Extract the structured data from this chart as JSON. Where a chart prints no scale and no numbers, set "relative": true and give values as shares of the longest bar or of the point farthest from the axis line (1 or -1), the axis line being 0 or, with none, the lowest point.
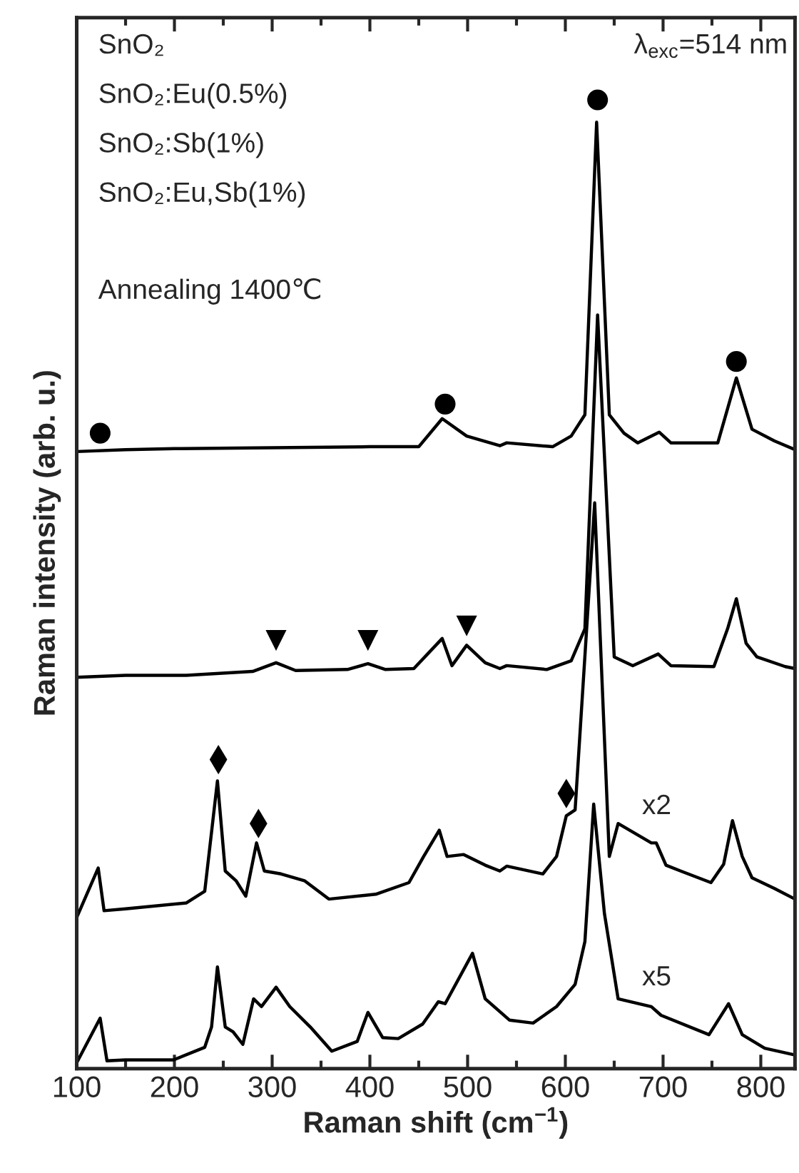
{
  "chart_data": {
    "type": "line",
    "relative": true,
    "xlabel": "Raman shift (cm$^{−1}$)",
    "ylabel": "Raman intensity (arb. u.)",
    "xlim": [
      100,
      835
    ],
    "xticks": [
      100,
      200,
      300,
      400,
      500,
      600,
      700,
      800
    ],
    "tick_labels": "x",
    "grid": false,
    "series": [
      {
        "color": "#000000",
        "x": [
          100,
          150,
          200,
          300,
          400,
          450,
          474,
          499,
          533,
          540,
          587,
          606,
          620,
          632,
          645,
          660,
          674,
          696,
          708,
          756,
          775,
          791,
          814,
          835
        ],
        "values": [
          0.637,
          0.639,
          0.64,
          0.641,
          0.642,
          0.642,
          0.671,
          0.653,
          0.643,
          0.646,
          0.642,
          0.653,
          0.675,
          0.977,
          0.675,
          0.656,
          0.646,
          0.657,
          0.646,
          0.646,
          0.713,
          0.66,
          0.648,
          0.639
        ]
      },
      {
        "color": "#000000",
        "x": [
          100,
          150,
          212,
          280,
          304,
          324,
          377,
          398,
          416,
          445,
          474,
          484,
          499,
          518,
          533,
          540,
          581,
          606,
          620,
          633,
          650,
          669,
          695,
          708,
          752,
          766,
          775,
          785,
          796,
          825,
          835
        ],
        "values": [
          0.404,
          0.406,
          0.406,
          0.41,
          0.419,
          0.411,
          0.412,
          0.418,
          0.412,
          0.413,
          0.444,
          0.416,
          0.437,
          0.419,
          0.413,
          0.416,
          0.412,
          0.421,
          0.454,
          0.778,
          0.425,
          0.416,
          0.428,
          0.416,
          0.415,
          0.454,
          0.485,
          0.439,
          0.425,
          0.415,
          0.413
        ]
      },
      {
        "color": "#000000",
        "x": [
          100,
          122,
          128,
          150,
          212,
          231,
          244,
          252,
          263,
          273,
          284,
          292,
          309,
          333,
          358,
          406,
          440,
          455,
          471,
          479,
          496,
          518,
          533,
          540,
          577,
          591,
          601,
          610,
          630,
          645,
          654,
          688,
          693,
          703,
          718,
          749,
          762,
          771,
          781,
          791,
          814,
          835
        ],
        "values": [
          0.156,
          0.207,
          0.163,
          0.165,
          0.171,
          0.183,
          0.297,
          0.204,
          0.194,
          0.178,
          0.233,
          0.204,
          0.201,
          0.194,
          0.175,
          0.18,
          0.192,
          0.219,
          0.246,
          0.219,
          0.221,
          0.21,
          0.204,
          0.209,
          0.201,
          0.219,
          0.261,
          0.267,
          0.584,
          0.219,
          0.253,
          0.233,
          0.233,
          0.21,
          0.204,
          0.192,
          0.211,
          0.256,
          0.219,
          0.197,
          0.186,
          0.175
        ]
      },
      {
        "color": "#000000",
        "x": [
          100,
          124,
          131,
          150,
          199,
          231,
          238,
          244,
          252,
          260,
          270,
          281,
          289,
          304,
          318,
          339,
          361,
          387,
          398,
          413,
          429,
          454,
          470,
          477,
          505,
          518,
          543,
          567,
          591,
          610,
          620,
          629,
          640,
          654,
          688,
          698,
          747,
          767,
          781,
          804,
          835
        ],
        "values": [
          0.006,
          0.052,
          0.008,
          0.009,
          0.009,
          0.022,
          0.043,
          0.105,
          0.043,
          0.038,
          0.025,
          0.072,
          0.064,
          0.084,
          0.064,
          0.043,
          0.018,
          0.028,
          0.058,
          0.032,
          0.031,
          0.046,
          0.069,
          0.067,
          0.119,
          0.072,
          0.05,
          0.047,
          0.064,
          0.087,
          0.131,
          0.273,
          0.16,
          0.072,
          0.064,
          0.055,
          0.035,
          0.067,
          0.035,
          0.021,
          0.014
        ]
      },
      {
        "type": "scatter",
        "marker": "circle",
        "color": "#000000",
        "x": [
          124,
          477,
          633,
          775
        ],
        "values": [
          0.656,
          0.686,
          1.0,
          0.73
        ]
      },
      {
        "type": "scatter",
        "marker": "triangle",
        "color": "#000000",
        "x": [
          304,
          398,
          499
        ],
        "values": [
          0.442,
          0.442,
          0.457
        ]
      },
      {
        "type": "scatter",
        "marker": "diamond",
        "color": "#000000",
        "x": [
          245,
          286,
          601
        ],
        "values": [
          0.319,
          0.253,
          0.284
        ]
      }
    ],
    "annotations": [
      "λ$_{exc}$=514 nm",
      "SnO₂",
      "SnO₂:Eu(0.5%)",
      "SnO₂:Sb(1%)",
      "SnO₂:Eu,Sb(1%)",
      "Annealing 1400℃",
      "x2",
      "x5"
    ]
  }
}
